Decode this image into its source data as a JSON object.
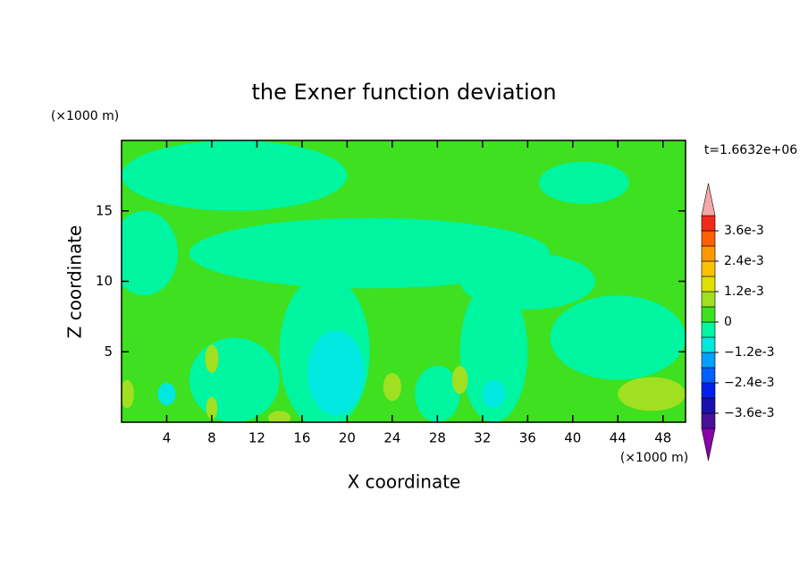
{
  "chart_data": {
    "type": "contour",
    "title": "the Exner function deviation",
    "x_label": "X coordinate",
    "y_label": "Z coordinate",
    "x_unit": "(×1000 m)",
    "y_unit": "(×1000 m)",
    "time_label": "t=1.6632e+06",
    "xlim": [
      0,
      50
    ],
    "xticks": [
      4,
      8,
      12,
      16,
      20,
      24,
      28,
      32,
      36,
      40,
      44,
      48
    ],
    "ylim": [
      0,
      20
    ],
    "yticks": [
      5,
      10,
      15
    ],
    "colorbar": {
      "levels": [
        -0.0042,
        -0.0036,
        -0.003,
        -0.0024,
        -0.0018,
        -0.0012,
        -0.0006,
        0,
        0.0006,
        0.0012,
        0.0018,
        0.0024,
        0.003,
        0.0036,
        0.0042
      ],
      "colors": [
        "#4a109a",
        "#1a10b0",
        "#0020e8",
        "#0060ff",
        "#00a0ff",
        "#00e8e0",
        "#00f5a0",
        "#3ee020",
        "#a0e020",
        "#e0e000",
        "#ffc000",
        "#ff9900",
        "#ff6000",
        "#f02a1a"
      ],
      "under_color": "#8a00a8",
      "over_color": "#f4a8a8",
      "ticks": [
        {
          "value": 0.0036,
          "label": "3.6e-3"
        },
        {
          "value": 0.0024,
          "label": "2.4e-3"
        },
        {
          "value": 0.0012,
          "label": "1.2e-3"
        },
        0,
        {
          "value": -0.0012,
          "label": "−1.2e-3"
        },
        {
          "value": -0.0024,
          "label": "−2.4e-3"
        },
        {
          "value": -0.0036,
          "label": "−3.6e-3"
        }
      ]
    }
  }
}
